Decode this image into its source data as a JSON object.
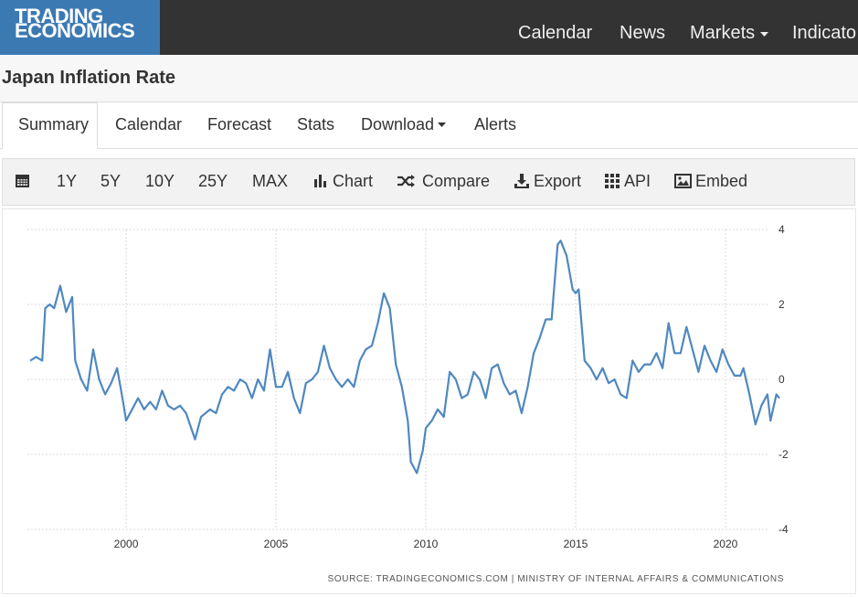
{
  "header": {
    "logo": "TRADING ECONOMICS",
    "nav": [
      "Calendar",
      "News",
      "Markets",
      "Indicato"
    ]
  },
  "title": "Japan Inflation Rate",
  "tabs": [
    "Summary",
    "Calendar",
    "Forecast",
    "Stats",
    "Download",
    "Alerts"
  ],
  "toolbar": [
    "1Y",
    "5Y",
    "10Y",
    "25Y",
    "MAX",
    "Chart",
    "Compare",
    "Export",
    "API",
    "Embed"
  ],
  "chart_data": {
    "type": "line",
    "x": [
      1996.8,
      1997.0,
      1997.2,
      1997.3,
      1997.45,
      1997.6,
      1997.8,
      1998.0,
      1998.2,
      1998.3,
      1998.5,
      1998.7,
      1998.9,
      1999.1,
      1999.3,
      1999.5,
      1999.7,
      1999.9,
      2000.0,
      2000.2,
      2000.4,
      2000.6,
      2000.8,
      2001.0,
      2001.2,
      2001.4,
      2001.6,
      2001.8,
      2002.0,
      2002.3,
      2002.5,
      2002.8,
      2003.0,
      2003.2,
      2003.4,
      2003.6,
      2003.8,
      2004.0,
      2004.2,
      2004.4,
      2004.6,
      2004.8,
      2005.0,
      2005.2,
      2005.4,
      2005.6,
      2005.8,
      2006.0,
      2006.2,
      2006.4,
      2006.6,
      2006.8,
      2007.0,
      2007.2,
      2007.4,
      2007.6,
      2007.8,
      2008.0,
      2008.2,
      2008.4,
      2008.6,
      2008.8,
      2009.0,
      2009.2,
      2009.4,
      2009.5,
      2009.7,
      2009.9,
      2010.0,
      2010.2,
      2010.4,
      2010.6,
      2010.8,
      2011.0,
      2011.2,
      2011.4,
      2011.6,
      2011.8,
      2012.0,
      2012.2,
      2012.4,
      2012.6,
      2012.8,
      2013.0,
      2013.2,
      2013.4,
      2013.6,
      2013.8,
      2014.0,
      2014.2,
      2014.4,
      2014.5,
      2014.7,
      2014.9,
      2015.0,
      2015.1,
      2015.3,
      2015.5,
      2015.7,
      2015.9,
      2016.1,
      2016.3,
      2016.5,
      2016.7,
      2016.9,
      2017.1,
      2017.3,
      2017.5,
      2017.7,
      2017.9,
      2018.1,
      2018.3,
      2018.5,
      2018.7,
      2018.9,
      2019.1,
      2019.3,
      2019.5,
      2019.7,
      2019.9,
      2020.1,
      2020.3,
      2020.5,
      2020.6,
      2020.8,
      2021.0,
      2021.2,
      2021.4,
      2021.5,
      2021.7,
      2021.8
    ],
    "series": [
      {
        "name": "Japan Inflation Rate",
        "color": "#4f88bf",
        "values": [
          0.5,
          0.6,
          0.5,
          1.9,
          2.0,
          1.9,
          2.5,
          1.8,
          2.2,
          0.5,
          0.0,
          -0.3,
          0.8,
          0.0,
          -0.4,
          -0.1,
          0.3,
          -0.6,
          -1.1,
          -0.8,
          -0.5,
          -0.8,
          -0.6,
          -0.8,
          -0.3,
          -0.7,
          -0.8,
          -0.7,
          -0.9,
          -1.6,
          -1.0,
          -0.8,
          -0.9,
          -0.4,
          -0.2,
          -0.3,
          0.0,
          -0.1,
          -0.5,
          0.0,
          -0.3,
          0.8,
          -0.2,
          -0.2,
          0.2,
          -0.5,
          -0.9,
          -0.1,
          0.0,
          0.2,
          0.9,
          0.3,
          0.0,
          -0.2,
          0.0,
          -0.2,
          0.5,
          0.8,
          0.9,
          1.5,
          2.3,
          1.9,
          0.4,
          -0.2,
          -1.1,
          -2.2,
          -2.5,
          -1.9,
          -1.3,
          -1.1,
          -0.8,
          -1.0,
          0.2,
          0.0,
          -0.5,
          -0.4,
          0.2,
          0.0,
          -0.5,
          0.3,
          0.4,
          -0.1,
          -0.4,
          -0.3,
          -0.9,
          -0.2,
          0.7,
          1.1,
          1.6,
          1.6,
          3.6,
          3.7,
          3.3,
          2.4,
          2.3,
          2.4,
          0.5,
          0.3,
          0.0,
          0.3,
          -0.1,
          0.0,
          -0.4,
          -0.5,
          0.5,
          0.2,
          0.4,
          0.4,
          0.7,
          0.3,
          1.5,
          0.7,
          0.7,
          1.4,
          0.8,
          0.2,
          0.9,
          0.5,
          0.2,
          0.8,
          0.4,
          0.1,
          0.1,
          0.3,
          -0.4,
          -1.2,
          -0.7,
          -0.4,
          -1.1,
          -0.4,
          -0.5
        ]
      }
    ],
    "xlim": [
      1996.7,
      2021.8
    ],
    "xticks": [
      2000,
      2005,
      2010,
      2015,
      2020
    ],
    "ylim": [
      -4,
      4
    ],
    "yticks": [
      -4,
      -2,
      0,
      2,
      4
    ],
    "grid": true,
    "source": "SOURCE: TRADINGECONOMICS.COM | MINISTRY OF INTERNAL AFFAIRS & COMMUNICATIONS"
  }
}
